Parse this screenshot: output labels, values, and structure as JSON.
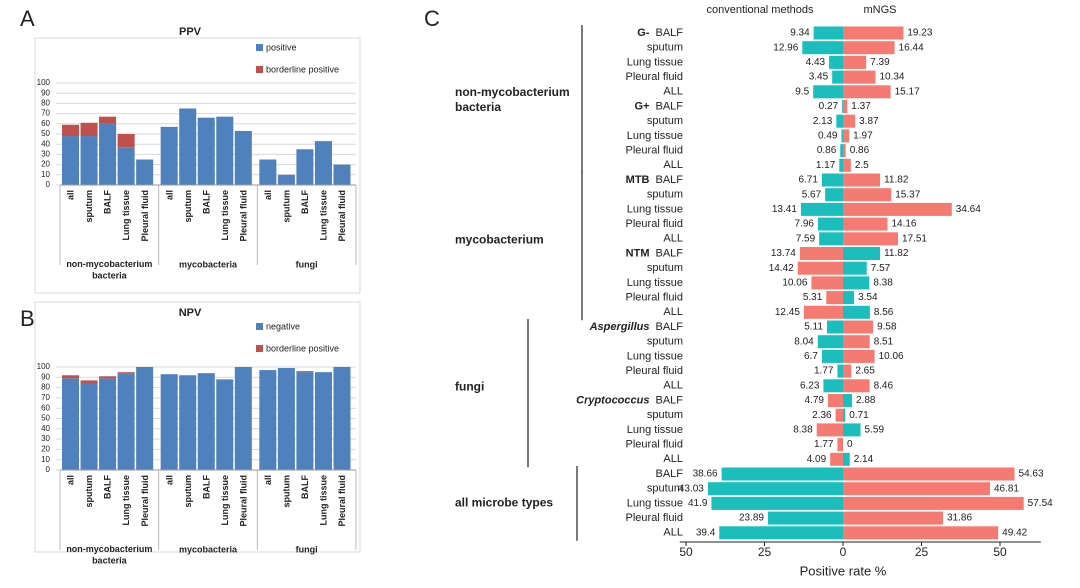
{
  "chart_data": [
    {
      "type": "bar",
      "panel": "A",
      "title": "PPV",
      "stacked": true,
      "grid": true,
      "ylim": [
        0,
        100
      ],
      "yticks": [
        0,
        10,
        20,
        30,
        40,
        50,
        60,
        70,
        80,
        90,
        100
      ],
      "groups": [
        {
          "name": "non-mycobacterium bacteria",
          "categories": [
            "all",
            "sputum",
            "BALF",
            "Lung tissue",
            "Pleural fluid"
          ]
        },
        {
          "name": "mycobacteria",
          "categories": [
            "all",
            "sputum",
            "BALF",
            "Lung tissue",
            "Pleural fluid"
          ]
        },
        {
          "name": "fungi",
          "categories": [
            "all",
            "sputum",
            "BALF",
            "Lung tissue",
            "Pleural fluid"
          ]
        }
      ],
      "series": [
        {
          "name": "positive",
          "color": "#4f81bd",
          "values": [
            48,
            48,
            60,
            37,
            25,
            57,
            75,
            66,
            67,
            53,
            25,
            10,
            35,
            43,
            20
          ]
        },
        {
          "name": "borderline positive",
          "color": "#c0504d",
          "values": [
            11,
            13,
            7,
            13,
            0,
            0,
            0,
            0,
            0,
            0,
            0,
            0,
            0,
            0,
            0
          ]
        }
      ]
    },
    {
      "type": "bar",
      "panel": "B",
      "title": "NPV",
      "stacked": true,
      "grid": true,
      "ylim": [
        0,
        100
      ],
      "yticks": [
        0,
        10,
        20,
        30,
        40,
        50,
        60,
        70,
        80,
        90,
        100
      ],
      "groups": [
        {
          "name": "non-mycobacterium bacteria",
          "categories": [
            "all",
            "sputum",
            "BALF",
            "Lung tissue",
            "Pleural fluid"
          ]
        },
        {
          "name": "mycobacteria",
          "categories": [
            "all",
            "sputum",
            "BALF",
            "Lung tissue",
            "Pleural fluid"
          ]
        },
        {
          "name": "fungi",
          "categories": [
            "all",
            "sputum",
            "BALF",
            "Lung tissue",
            "Pleural fluid"
          ]
        }
      ],
      "series": [
        {
          "name": "negative",
          "color": "#4f81bd",
          "values": [
            89,
            84,
            89,
            94,
            100,
            93,
            92,
            94,
            88,
            100,
            97,
            99,
            95,
            95,
            100
          ]
        },
        {
          "name": "borderline positive",
          "color": "#c0504d",
          "values": [
            3,
            3,
            2,
            1,
            0,
            0,
            0,
            0,
            0,
            0,
            0,
            0,
            1,
            0,
            0
          ]
        }
      ]
    },
    {
      "type": "diverging",
      "panel": "C",
      "xlabel": "Positive rate %",
      "higher_color": "#f47a72",
      "lower_color": "#1bbdbd",
      "xlim": [
        -52,
        63
      ],
      "xticks": [
        {
          "value": -50,
          "label": "50"
        },
        {
          "value": -25,
          "label": "25"
        },
        0,
        25,
        50
      ],
      "groups": [
        {
          "name": "non-mycobacterium bacteria",
          "subgroups": [
            {
              "name": "G-",
              "categories": [
                "BALF",
                "sputum",
                "Lung tissue",
                "Pleural fluid",
                "ALL"
              ]
            },
            {
              "name": "G+",
              "categories": [
                "BALF",
                "sputum",
                "Lung tissue",
                "Pleural fluid",
                "ALL"
              ]
            }
          ]
        },
        {
          "name": "mycobacterium",
          "subgroups": [
            {
              "name": "MTB",
              "categories": [
                "BALF",
                "sputum",
                "Lung tissue",
                "Pleural fluid",
                "ALL"
              ]
            },
            {
              "name": "NTM",
              "categories": [
                "BALF",
                "sputum",
                "Lung tissue",
                "Pleural fluid",
                "ALL"
              ]
            }
          ]
        },
        {
          "name": "fungi",
          "subgroups": [
            {
              "name": "Aspergillus",
              "italic": true,
              "categories": [
                "BALF",
                "sputum",
                "Lung tissue",
                "Pleural fluid",
                "ALL"
              ]
            },
            {
              "name": "Cryptococcus",
              "italic": true,
              "categories": [
                "BALF",
                "sputum",
                "Lung tissue",
                "Pleural fluid",
                "ALL"
              ]
            }
          ]
        },
        {
          "name": "all microbe types",
          "categories": [
            "BALF",
            "sputum",
            "Lung tissue",
            "Pleural fluid",
            "ALL"
          ]
        }
      ],
      "series": [
        {
          "name": "conventional methods",
          "values": [
            9.34,
            12.96,
            4.43,
            3.45,
            9.5,
            0.27,
            2.13,
            0.49,
            0.86,
            1.17,
            6.71,
            5.67,
            13.41,
            7.96,
            7.59,
            13.74,
            14.42,
            10.06,
            5.31,
            12.45,
            5.11,
            8.04,
            6.7,
            1.77,
            6.23,
            4.79,
            2.36,
            8.38,
            1.77,
            4.09,
            38.66,
            43.03,
            41.9,
            23.89,
            39.4
          ]
        },
        {
          "name": "mNGS",
          "values": [
            19.23,
            16.44,
            7.39,
            10.34,
            15.17,
            1.37,
            3.87,
            1.97,
            0.86,
            2.5,
            11.82,
            15.37,
            34.64,
            14.16,
            17.51,
            11.82,
            7.57,
            8.38,
            3.54,
            8.56,
            9.58,
            8.51,
            10.06,
            2.65,
            8.46,
            2.88,
            0.71,
            5.59,
            0,
            2.14,
            54.63,
            46.81,
            57.54,
            31.86,
            49.42
          ]
        }
      ]
    }
  ]
}
